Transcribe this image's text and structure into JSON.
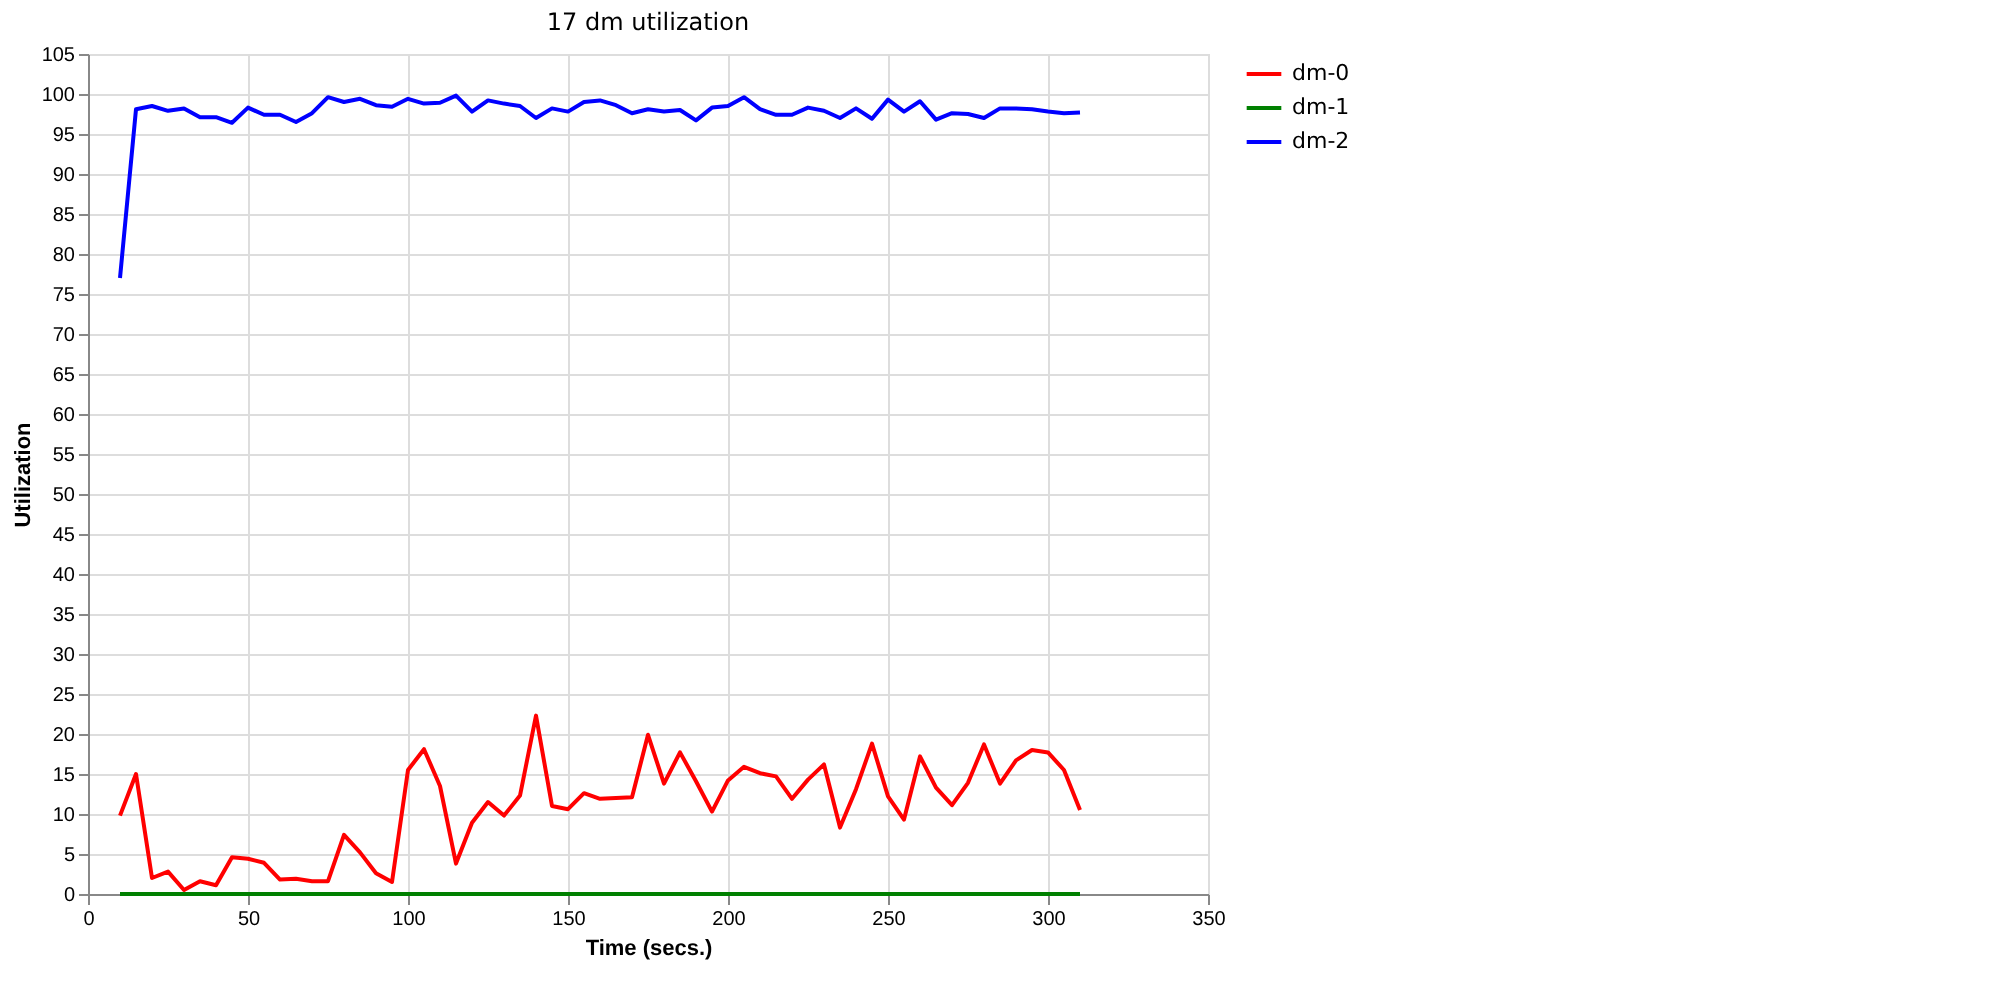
{
  "chart_data": {
    "type": "line",
    "title": "17 dm utilization",
    "xlabel": "Time (secs.)",
    "ylabel": "Utilization",
    "x": [
      10,
      15,
      20,
      25,
      30,
      35,
      40,
      45,
      50,
      55,
      60,
      65,
      70,
      75,
      80,
      85,
      90,
      95,
      100,
      105,
      110,
      115,
      120,
      125,
      130,
      135,
      140,
      145,
      150,
      155,
      160,
      165,
      170,
      175,
      180,
      185,
      190,
      195,
      200,
      205,
      210,
      215,
      220,
      225,
      230,
      235,
      240,
      245,
      250,
      255,
      260,
      265,
      270,
      275,
      280,
      285,
      290,
      295,
      300,
      305,
      310
    ],
    "series": [
      {
        "name": "dm-0",
        "color": "#ff0000",
        "values": [
          9.8,
          15,
          2,
          2.8,
          0.5,
          1.6,
          1.1,
          4.6,
          4.4,
          3.9,
          1.8,
          1.9,
          1.6,
          1.6,
          7.4,
          5.2,
          2.6,
          1.5,
          15.5,
          18.1,
          13.5,
          3.8,
          8.9,
          11.5,
          9.8,
          12.3,
          22.3,
          11,
          10.6,
          12.6,
          11.9,
          12,
          12.1,
          19.9,
          13.8,
          17.7,
          14.1,
          10.3,
          14.2,
          15.9,
          15.1,
          14.7,
          11.9,
          14.3,
          16.2,
          8.3,
          13.1,
          18.8,
          12.2,
          9.3,
          17.2,
          13.3,
          11.1,
          13.9,
          18.7,
          13.8,
          16.7,
          18,
          17.7,
          15.5,
          10.5
        ]
      },
      {
        "name": "dm-1",
        "color": "#008000",
        "values": [
          0,
          0,
          0,
          0,
          0,
          0,
          0,
          0,
          0,
          0,
          0,
          0,
          0,
          0,
          0,
          0,
          0,
          0,
          0,
          0,
          0,
          0,
          0,
          0,
          0,
          0,
          0,
          0,
          0,
          0,
          0,
          0,
          0,
          0,
          0,
          0,
          0,
          0,
          0,
          0,
          0,
          0,
          0,
          0,
          0,
          0,
          0,
          0,
          0,
          0,
          0,
          0,
          0,
          0,
          0,
          0,
          0,
          0,
          0,
          0,
          0
        ]
      },
      {
        "name": "dm-2",
        "color": "#0000ff",
        "values": [
          77,
          98.1,
          98.5,
          97.9,
          98.2,
          97.1,
          97.1,
          96.4,
          98.3,
          97.4,
          97.4,
          96.5,
          97.6,
          99.6,
          99,
          99.4,
          98.6,
          98.4,
          99.4,
          98.8,
          98.9,
          99.8,
          97.8,
          99.2,
          98.8,
          98.5,
          97,
          98.2,
          97.8,
          99,
          99.2,
          98.6,
          97.6,
          98.1,
          97.8,
          98,
          96.7,
          98.3,
          98.5,
          99.6,
          98.1,
          97.4,
          97.4,
          98.3,
          97.9,
          97,
          98.2,
          96.9,
          99.3,
          97.8,
          99.1,
          96.8,
          97.6,
          97.5,
          97,
          98.2,
          98.2,
          98.1,
          97.8,
          97.6,
          97.7
        ]
      }
    ],
    "xlim": [
      0,
      350
    ],
    "xticks": [
      0,
      50,
      100,
      150,
      200,
      250,
      300,
      350
    ],
    "ylim": [
      0,
      105
    ],
    "yticks": [
      0,
      5,
      10,
      15,
      20,
      25,
      30,
      35,
      40,
      45,
      50,
      55,
      60,
      65,
      70,
      75,
      80,
      85,
      90,
      95,
      100,
      105
    ],
    "grid": true,
    "legend": "right",
    "marker": "none",
    "line_style": "solid"
  }
}
